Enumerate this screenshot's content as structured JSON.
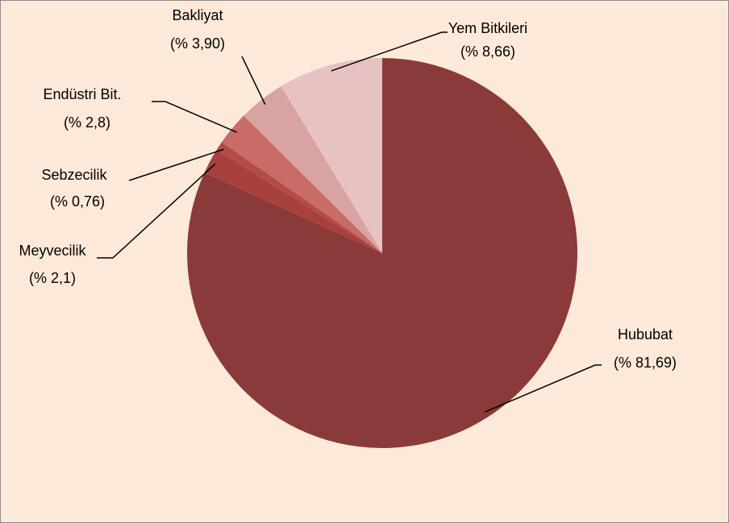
{
  "chart_data": {
    "type": "pie",
    "categories": [
      "Hububat",
      "Meyvecilik",
      "Sebzecilik",
      "Endüstri Bit.",
      "Bakliyat",
      "Yem Bitkileri"
    ],
    "values": [
      81.69,
      2.1,
      0.76,
      2.8,
      3.9,
      8.66
    ],
    "value_labels": [
      "(% 81,69)",
      "(% 2,1)",
      "(% 0,76)",
      "(% 2,8)",
      "(% 3,90)",
      "(% 8,66)"
    ],
    "colors": [
      "#8b3a3a",
      "#a8403e",
      "#b54b47",
      "#c86b69",
      "#d9a3a2",
      "#e6c2c3"
    ]
  }
}
